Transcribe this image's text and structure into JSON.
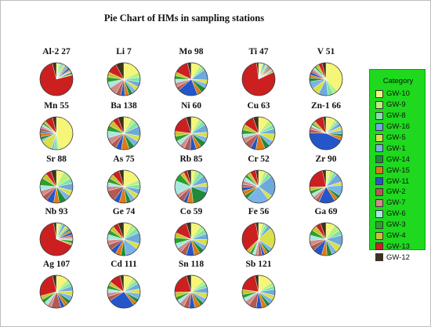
{
  "chart_data": {
    "type": "pie",
    "title": "Pie Chart of HMs in sampling stations",
    "legend": {
      "title": "Category",
      "placement": "right",
      "entries": [
        {
          "name": "GW-10",
          "color": "#f5f577"
        },
        {
          "name": "GW-9",
          "color": "#b8f07c"
        },
        {
          "name": "GW-8",
          "color": "#7fe3a8"
        },
        {
          "name": "GW-16",
          "color": "#6fa8dc"
        },
        {
          "name": "GW-5",
          "color": "#d8e04a"
        },
        {
          "name": "GW-1",
          "color": "#7ab3e8"
        },
        {
          "name": "GW-14",
          "color": "#1f8a3a"
        },
        {
          "name": "GW-15",
          "color": "#e07a10"
        },
        {
          "name": "GW-11",
          "color": "#2456c9"
        },
        {
          "name": "GW-2",
          "color": "#b35a52"
        },
        {
          "name": "GW-7",
          "color": "#d08a8a"
        },
        {
          "name": "GW-6",
          "color": "#a8e8e0"
        },
        {
          "name": "GW-3",
          "color": "#2ca02c"
        },
        {
          "name": "GW-4",
          "color": "#c9c22e"
        },
        {
          "name": "GW-13",
          "color": "#cc1f1f"
        },
        {
          "name": "GW-12",
          "color": "#3b3418"
        }
      ]
    },
    "pies": [
      {
        "label": "Al-2 27",
        "values": [
          2,
          2,
          2,
          1,
          2,
          2,
          1,
          1,
          2,
          1,
          1,
          1,
          2,
          1,
          75,
          4
        ]
      },
      {
        "label": "Li 7",
        "values": [
          18,
          5,
          5,
          5,
          4,
          4,
          4,
          4,
          4,
          5,
          8,
          6,
          5,
          5,
          10,
          8
        ]
      },
      {
        "label": "Mo 98",
        "values": [
          10,
          4,
          3,
          12,
          4,
          5,
          6,
          5,
          22,
          4,
          5,
          4,
          4,
          4,
          16,
          4
        ]
      },
      {
        "label": "Ti 47",
        "values": [
          3,
          1,
          1,
          2,
          2,
          1,
          1,
          1,
          1,
          1,
          1,
          1,
          1,
          1,
          80,
          2
        ]
      },
      {
        "label": "V 51",
        "values": [
          40,
          5,
          6,
          10,
          8,
          8,
          4,
          3,
          3,
          2,
          2,
          2,
          2,
          3,
          4,
          4
        ]
      },
      {
        "label": "Mn 55",
        "values": [
          48,
          2,
          4,
          2,
          12,
          2,
          3,
          4,
          2,
          3,
          2,
          2,
          2,
          2,
          8,
          4
        ]
      },
      {
        "label": "Ba 138",
        "values": [
          8,
          5,
          6,
          10,
          6,
          6,
          6,
          8,
          6,
          6,
          7,
          7,
          6,
          6,
          6,
          6
        ]
      },
      {
        "label": "Ni 60",
        "values": [
          8,
          4,
          4,
          8,
          5,
          5,
          6,
          5,
          6,
          6,
          5,
          5,
          5,
          5,
          18,
          5
        ]
      },
      {
        "label": "Cu 63",
        "values": [
          12,
          6,
          5,
          6,
          8,
          6,
          6,
          10,
          6,
          8,
          6,
          4,
          5,
          6,
          12,
          6
        ]
      },
      {
        "label": "Zn-1 66",
        "values": [
          10,
          3,
          3,
          4,
          4,
          4,
          3,
          4,
          48,
          4,
          3,
          2,
          2,
          3,
          10,
          3
        ]
      },
      {
        "label": "Sr 88",
        "values": [
          8,
          10,
          6,
          8,
          6,
          6,
          8,
          6,
          8,
          6,
          6,
          6,
          8,
          6,
          6,
          6
        ]
      },
      {
        "label": "As 75",
        "values": [
          20,
          5,
          5,
          6,
          6,
          5,
          5,
          8,
          6,
          12,
          5,
          4,
          5,
          5,
          8,
          5
        ]
      },
      {
        "label": "Rb 85",
        "values": [
          4,
          4,
          6,
          8,
          4,
          6,
          18,
          6,
          4,
          6,
          4,
          14,
          8,
          4,
          4,
          4
        ]
      },
      {
        "label": "Cr 52",
        "values": [
          6,
          4,
          5,
          22,
          5,
          24,
          4,
          5,
          4,
          3,
          4,
          4,
          3,
          4,
          6,
          3
        ]
      },
      {
        "label": "Zr 90",
        "values": [
          5,
          4,
          4,
          10,
          4,
          12,
          4,
          4,
          18,
          4,
          4,
          4,
          4,
          4,
          25,
          4
        ]
      },
      {
        "label": "Nb 93",
        "values": [
          3,
          2,
          2,
          3,
          3,
          2,
          2,
          2,
          3,
          2,
          2,
          2,
          3,
          2,
          70,
          3
        ]
      },
      {
        "label": "Ge 74",
        "values": [
          8,
          6,
          6,
          12,
          6,
          14,
          5,
          6,
          6,
          6,
          5,
          6,
          5,
          5,
          6,
          6
        ]
      },
      {
        "label": "Co 59",
        "values": [
          10,
          5,
          5,
          6,
          6,
          5,
          5,
          6,
          8,
          6,
          5,
          5,
          6,
          5,
          14,
          5
        ]
      },
      {
        "label": "Fe 56",
        "values": [
          4,
          3,
          3,
          4,
          22,
          4,
          3,
          3,
          3,
          4,
          3,
          3,
          3,
          4,
          36,
          3
        ]
      },
      {
        "label": "Ga 69",
        "values": [
          10,
          8,
          6,
          12,
          8,
          6,
          6,
          6,
          10,
          6,
          6,
          6,
          6,
          6,
          6,
          6
        ]
      },
      {
        "label": "Ag 107",
        "values": [
          12,
          4,
          4,
          5,
          5,
          5,
          4,
          4,
          4,
          10,
          4,
          4,
          4,
          4,
          26,
          4
        ]
      },
      {
        "label": "Cd 111",
        "values": [
          10,
          4,
          4,
          6,
          5,
          6,
          4,
          4,
          28,
          5,
          4,
          4,
          4,
          4,
          12,
          4
        ]
      },
      {
        "label": "Sn 118",
        "values": [
          14,
          4,
          4,
          6,
          6,
          5,
          4,
          6,
          6,
          6,
          5,
          4,
          4,
          5,
          22,
          5
        ]
      },
      {
        "label": "Sb 121",
        "values": [
          16,
          4,
          4,
          6,
          5,
          5,
          4,
          5,
          6,
          8,
          5,
          4,
          4,
          5,
          20,
          4
        ]
      }
    ]
  }
}
